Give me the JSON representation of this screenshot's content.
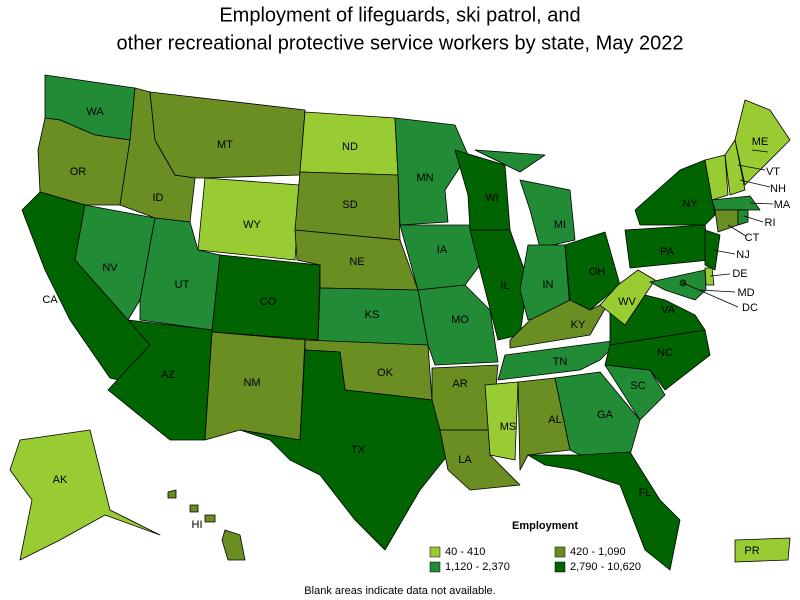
{
  "title": [
    "Employment of lifeguards, ski patrol, and",
    "other recreational protective service workers by state, May 2022"
  ],
  "legend": {
    "title": "Employment",
    "items": [
      {
        "label": "40 - 410",
        "color": "#99cc33"
      },
      {
        "label": "420 - 1,090",
        "color": "#6b8e23"
      },
      {
        "label": "1,120 - 2,370",
        "color": "#228b35"
      },
      {
        "label": "2,790 - 10,620",
        "color": "#006400"
      }
    ]
  },
  "footnote": "Blank areas indicate data not available.",
  "states": [
    {
      "label": "WA",
      "group": 2
    },
    {
      "label": "OR",
      "group": 1
    },
    {
      "label": "CA",
      "group": 3
    },
    {
      "label": "NV",
      "group": 2
    },
    {
      "label": "ID",
      "group": 1
    },
    {
      "label": "MT",
      "group": 1
    },
    {
      "label": "WY",
      "group": 0
    },
    {
      "label": "UT",
      "group": 2
    },
    {
      "label": "AZ",
      "group": 3
    },
    {
      "label": "CO",
      "group": 3
    },
    {
      "label": "NM",
      "group": 1
    },
    {
      "label": "ND",
      "group": 0
    },
    {
      "label": "SD",
      "group": 1
    },
    {
      "label": "NE",
      "group": 1
    },
    {
      "label": "KS",
      "group": 2
    },
    {
      "label": "OK",
      "group": 1
    },
    {
      "label": "TX",
      "group": 3
    },
    {
      "label": "MN",
      "group": 2
    },
    {
      "label": "IA",
      "group": 2
    },
    {
      "label": "MO",
      "group": 2
    },
    {
      "label": "AR",
      "group": 1
    },
    {
      "label": "LA",
      "group": 1
    },
    {
      "label": "WI",
      "group": 3
    },
    {
      "label": "IL",
      "group": 3
    },
    {
      "label": "MI",
      "group": 2
    },
    {
      "label": "IN",
      "group": 2
    },
    {
      "label": "OH",
      "group": 3
    },
    {
      "label": "KY",
      "group": 1
    },
    {
      "label": "TN",
      "group": 2
    },
    {
      "label": "MS",
      "group": 0
    },
    {
      "label": "AL",
      "group": 1
    },
    {
      "label": "GA",
      "group": 2
    },
    {
      "label": "FL",
      "group": 3
    },
    {
      "label": "SC",
      "group": 2
    },
    {
      "label": "NC",
      "group": 3
    },
    {
      "label": "VA",
      "group": 3
    },
    {
      "label": "WV",
      "group": 0
    },
    {
      "label": "PA",
      "group": 3
    },
    {
      "label": "NY",
      "group": 3
    },
    {
      "label": "ME",
      "group": 0
    },
    {
      "label": "VT",
      "group": 0
    },
    {
      "label": "NH",
      "group": 0
    },
    {
      "label": "MA",
      "group": 2
    },
    {
      "label": "CT",
      "group": 1
    },
    {
      "label": "RI",
      "group": 2
    },
    {
      "label": "NJ",
      "group": 3
    },
    {
      "label": "DE",
      "group": 0
    },
    {
      "label": "MD",
      "group": 2
    },
    {
      "label": "DC",
      "group": 3
    },
    {
      "label": "AK",
      "group": 0
    },
    {
      "label": "HI",
      "group": 1
    },
    {
      "label": "PR",
      "group": 0
    }
  ]
}
